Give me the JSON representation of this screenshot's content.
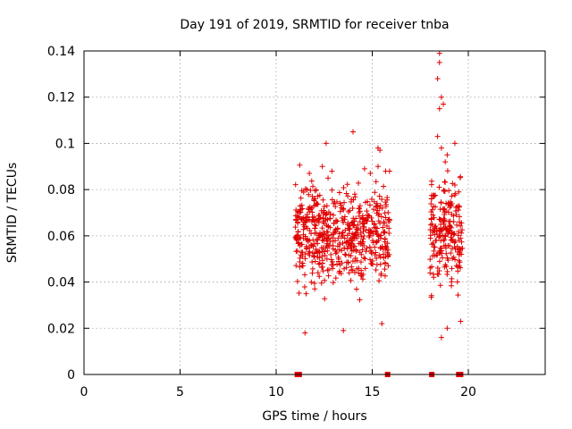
{
  "chart_data": {
    "type": "scatter",
    "title": "Day 191 of 2019, SRMTID for receiver tnba",
    "xlabel": "GPS time / hours",
    "ylabel": "SRMTID / TECUs",
    "xlim": [
      0,
      24
    ],
    "ylim": [
      0,
      0.14
    ],
    "x_ticks": [
      0,
      5,
      10,
      15,
      20
    ],
    "x_tick_labels": [
      "0",
      "5",
      "10",
      "15",
      "20"
    ],
    "y_ticks": [
      0,
      0.02,
      0.04,
      0.06,
      0.08,
      0.1,
      0.12,
      0.14
    ],
    "y_tick_labels": [
      "0",
      "0.02",
      "0.04",
      "0.06",
      "0.08",
      "0.1",
      "0.12",
      "0.14"
    ],
    "grid": true,
    "marker": "+",
    "color": "#e00000",
    "clusters": [
      {
        "x_range": [
          11.0,
          15.9
        ],
        "y_range": [
          0.017,
          0.095
        ],
        "count": 600
      },
      {
        "x_range": [
          18.0,
          19.7
        ],
        "y_range": [
          0.015,
          0.095
        ],
        "count": 220
      }
    ],
    "outliers": [
      {
        "x": 12.6,
        "y": 0.1
      },
      {
        "x": 14.0,
        "y": 0.105
      },
      {
        "x": 15.3,
        "y": 0.098
      },
      {
        "x": 15.4,
        "y": 0.097
      },
      {
        "x": 18.5,
        "y": 0.139
      },
      {
        "x": 18.5,
        "y": 0.135
      },
      {
        "x": 18.4,
        "y": 0.128
      },
      {
        "x": 18.6,
        "y": 0.12
      },
      {
        "x": 18.7,
        "y": 0.117
      },
      {
        "x": 18.5,
        "y": 0.115
      },
      {
        "x": 19.3,
        "y": 0.1
      },
      {
        "x": 18.4,
        "y": 0.103
      },
      {
        "x": 18.6,
        "y": 0.098
      },
      {
        "x": 15.7,
        "y": 0.088
      },
      {
        "x": 15.9,
        "y": 0.088
      },
      {
        "x": 12.7,
        "y": 0.085
      },
      {
        "x": 12.4,
        "y": 0.09
      },
      {
        "x": 12.9,
        "y": 0.088
      },
      {
        "x": 14.6,
        "y": 0.089
      },
      {
        "x": 14.9,
        "y": 0.087
      },
      {
        "x": 15.3,
        "y": 0.09
      },
      {
        "x": 19.3,
        "y": 0.082
      },
      {
        "x": 19.5,
        "y": 0.079
      },
      {
        "x": 11.2,
        "y": 0.07
      },
      {
        "x": 11.6,
        "y": 0.08
      },
      {
        "x": 13.5,
        "y": 0.019
      },
      {
        "x": 11.5,
        "y": 0.018
      },
      {
        "x": 18.6,
        "y": 0.016
      },
      {
        "x": 18.9,
        "y": 0.02
      },
      {
        "x": 19.6,
        "y": 0.023
      },
      {
        "x": 15.5,
        "y": 0.022
      },
      {
        "x": 18.8,
        "y": 0.092
      },
      {
        "x": 18.9,
        "y": 0.095
      }
    ],
    "zero_markers": [
      {
        "x": 11.1,
        "y": 0
      },
      {
        "x": 11.2,
        "y": 0
      },
      {
        "x": 15.8,
        "y": 0
      },
      {
        "x": 18.1,
        "y": 0
      },
      {
        "x": 19.5,
        "y": 0
      },
      {
        "x": 19.6,
        "y": 0
      }
    ]
  }
}
